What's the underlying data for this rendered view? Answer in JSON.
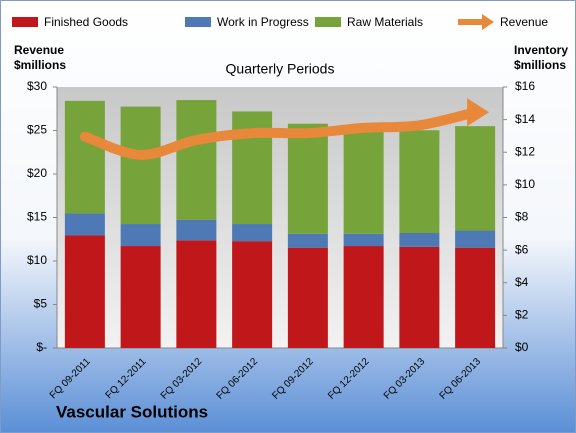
{
  "chart_data": {
    "type": "bar",
    "stacked": true,
    "title": "Quarterly Periods",
    "ylabel": [
      "Revenue",
      "$millions"
    ],
    "y2label": [
      "Inventory",
      "$millions"
    ],
    "caption": "Vascular Solutions",
    "categories": [
      "FQ 09-2011",
      "FQ 12-2011",
      "FQ 03-2012",
      "FQ 06-2012",
      "FQ 09-2012",
      "FQ 12-2012",
      "FQ 03-2013",
      "FQ 06-2013"
    ],
    "series": [
      {
        "name": "Finished Goods",
        "color": "#c0171b",
        "axis": "y2",
        "values": [
          6.9,
          6.25,
          6.6,
          6.55,
          6.15,
          6.25,
          6.2,
          6.15
        ]
      },
      {
        "name": "Work in Progress",
        "color": "#4f79b5",
        "axis": "y2",
        "values": [
          1.35,
          1.35,
          1.25,
          1.05,
          0.85,
          0.75,
          0.85,
          1.05
        ]
      },
      {
        "name": "Raw Materials",
        "color": "#77a33b",
        "axis": "y2",
        "values": [
          6.9,
          7.2,
          7.35,
          6.9,
          6.75,
          6.6,
          6.3,
          6.4
        ]
      },
      {
        "name": "Revenue",
        "color": "#e8883a",
        "type": "line",
        "values": [
          24.3,
          22.2,
          23.9,
          24.7,
          24.7,
          25.3,
          25.6,
          27.1
        ]
      }
    ],
    "ylim": [
      0,
      30
    ],
    "yticks": [
      {
        "value": 0,
        "label": "$-"
      },
      {
        "value": 5,
        "label": "$5"
      },
      {
        "value": 10,
        "label": "$10"
      },
      {
        "value": 15,
        "label": "$15"
      },
      {
        "value": 20,
        "label": "$20"
      },
      {
        "value": 25,
        "label": "$25"
      },
      {
        "value": 30,
        "label": "$30"
      }
    ],
    "y2lim": [
      0,
      16
    ],
    "y2ticks": [
      {
        "value": 0,
        "label": "$0"
      },
      {
        "value": 2,
        "label": "$2"
      },
      {
        "value": 4,
        "label": "$4"
      },
      {
        "value": 6,
        "label": "$6"
      },
      {
        "value": 8,
        "label": "$8"
      },
      {
        "value": 10,
        "label": "$10"
      },
      {
        "value": 12,
        "label": "$12"
      },
      {
        "value": 14,
        "label": "$14"
      },
      {
        "value": 16,
        "label": "$16"
      }
    ]
  }
}
